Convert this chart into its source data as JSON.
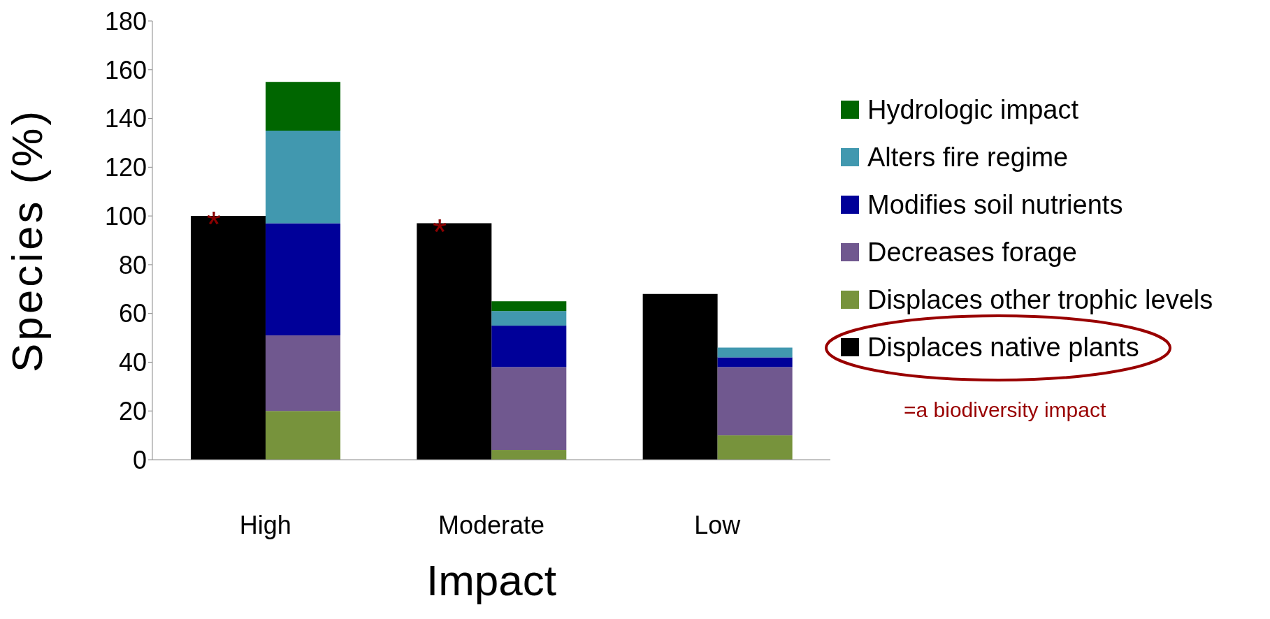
{
  "chart_data": {
    "type": "bar",
    "xlabel": "Impact",
    "ylabel": "Species (%)",
    "categories": [
      "High",
      "Moderate",
      "Low"
    ],
    "series": [
      {
        "name": "Displaces native plants",
        "color": "#000000",
        "values": [
          100,
          97,
          68
        ]
      },
      {
        "name": "Displaces other trophic levels",
        "color": "#77933c",
        "base": [
          0,
          0,
          0
        ],
        "values": [
          20,
          4,
          10
        ]
      },
      {
        "name": "Decreases forage",
        "color": "#70588f",
        "base": [
          20,
          4,
          10
        ],
        "values": [
          31,
          34,
          28
        ]
      },
      {
        "name": "Modifies soil nutrients",
        "color": "#000099",
        "base": [
          51,
          38,
          38
        ],
        "values": [
          46,
          17,
          4
        ]
      },
      {
        "name": "Alters fire regime",
        "color": "#4198af",
        "base": [
          97,
          55,
          42
        ],
        "values": [
          38,
          6,
          4
        ]
      },
      {
        "name": "Hydrologic impact",
        "color": "#006600",
        "base": [
          135,
          61,
          null
        ],
        "values": [
          20,
          4,
          null
        ]
      }
    ],
    "ylim": [
      0,
      180
    ],
    "yticks": [
      0,
      20,
      40,
      60,
      80,
      100,
      120,
      140,
      160,
      180
    ],
    "grid": false,
    "legend": "right",
    "annotations": [
      {
        "text": "*",
        "x": "High",
        "y": 100
      },
      {
        "text": "*",
        "x": "Moderate",
        "y": 97
      },
      "=a biodiversity impact"
    ]
  }
}
